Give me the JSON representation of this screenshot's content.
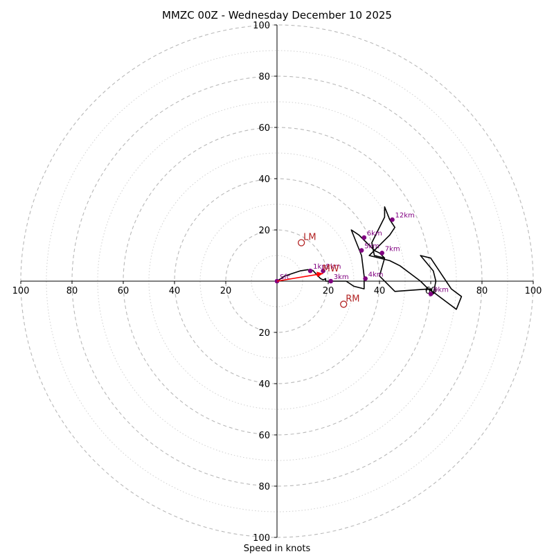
{
  "chart_data": {
    "type": "hodograph",
    "title": "MMZC 00Z - Wednesday December 10 2025",
    "xlabel": "Speed in knots",
    "units": "knots",
    "xlim": [
      -100,
      100
    ],
    "ylim": [
      -100,
      100
    ],
    "ring_spacing": 10,
    "labeled_rings": [
      20,
      40,
      60,
      80,
      100
    ],
    "x_tick_labels": [
      "100",
      "80",
      "60",
      "40",
      "20",
      "20",
      "40",
      "60",
      "80",
      "100"
    ],
    "y_tick_labels_top": [
      "20",
      "40",
      "60",
      "80",
      "100"
    ],
    "y_tick_labels_bottom": [
      "20",
      "40",
      "60",
      "80",
      "100"
    ],
    "hodograph_line": {
      "color": "#000000",
      "points": [
        [
          0,
          0
        ],
        [
          3,
          2
        ],
        [
          6,
          3
        ],
        [
          9,
          4
        ],
        [
          12,
          4.5
        ],
        [
          14,
          4.2
        ],
        [
          16,
          2
        ],
        [
          17,
          1
        ],
        [
          18,
          0.5
        ],
        [
          19,
          1
        ],
        [
          19,
          0
        ],
        [
          20,
          0
        ],
        [
          21,
          0
        ],
        [
          24,
          0
        ],
        [
          27,
          0
        ],
        [
          30,
          -2
        ],
        [
          34,
          -3
        ],
        [
          34,
          2
        ],
        [
          33,
          10
        ],
        [
          29,
          20
        ],
        [
          32,
          18
        ],
        [
          35,
          15
        ],
        [
          38,
          12
        ],
        [
          40,
          11
        ],
        [
          42,
          9
        ],
        [
          38,
          10
        ],
        [
          37,
          15
        ],
        [
          42,
          25
        ],
        [
          42,
          29
        ],
        [
          44,
          24
        ],
        [
          46,
          21
        ],
        [
          44,
          18
        ],
        [
          40,
          14
        ],
        [
          36,
          10
        ],
        [
          44,
          8
        ],
        [
          48,
          6
        ],
        [
          52,
          3
        ],
        [
          56,
          0
        ],
        [
          59,
          -3
        ],
        [
          62,
          -5
        ],
        [
          66,
          -8
        ],
        [
          70,
          -11
        ],
        [
          72,
          -6
        ],
        [
          68,
          -3
        ],
        [
          66,
          0
        ],
        [
          64,
          3
        ],
        [
          62,
          6
        ],
        [
          60,
          9
        ],
        [
          56,
          10
        ],
        [
          61,
          4
        ],
        [
          62,
          0
        ],
        [
          61,
          -5
        ],
        [
          60,
          -3
        ],
        [
          46,
          -4
        ],
        [
          40,
          2
        ],
        [
          42,
          9
        ]
      ]
    },
    "height_points": [
      {
        "label": "Sfc",
        "x": 0,
        "y": 0
      },
      {
        "label": "1km",
        "x": 13,
        "y": 4
      },
      {
        "label": "2km",
        "x": 18,
        "y": 4
      },
      {
        "label": "3km",
        "x": 21,
        "y": 0
      },
      {
        "label": "4km",
        "x": 34.5,
        "y": 1
      },
      {
        "label": "5km",
        "x": 33,
        "y": 12
      },
      {
        "label": "6km",
        "x": 34,
        "y": 17
      },
      {
        "label": "7km",
        "x": 41,
        "y": 11
      },
      {
        "label": "9km",
        "x": 60,
        "y": -5
      },
      {
        "label": "12km",
        "x": 45,
        "y": 24
      }
    ],
    "height_point_color": "#800080",
    "mean_wind": {
      "label": "MW",
      "x": 18,
      "y": 3,
      "color": "#b22222"
    },
    "storm_motion_arrow": {
      "from": [
        0,
        0
      ],
      "to": [
        18,
        3
      ],
      "color": "#ff0000"
    },
    "left_mover": {
      "label": "LM",
      "x": 9.5,
      "y": 15,
      "color": "#b22222"
    },
    "right_mover": {
      "label": "RM",
      "x": 26,
      "y": -9,
      "color": "#b22222"
    },
    "grid": true
  }
}
